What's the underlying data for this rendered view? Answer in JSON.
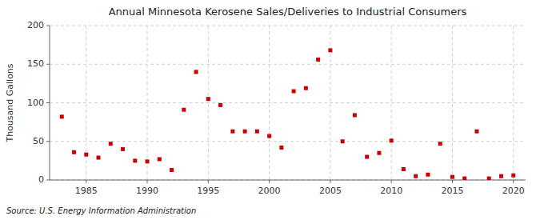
{
  "chart_data": {
    "type": "scatter",
    "title": "Annual Minnesota Kerosene Sales/Deliveries to Industrial Consumers",
    "ylabel": "Thousand Gallons",
    "annotation": "Source: U.S. Energy Information Administration",
    "x": [
      1983,
      1984,
      1985,
      1986,
      1987,
      1988,
      1989,
      1990,
      1991,
      1992,
      1993,
      1994,
      1995,
      1996,
      1997,
      1998,
      1999,
      2000,
      2001,
      2002,
      2003,
      2004,
      2005,
      2006,
      2007,
      2008,
      2009,
      2010,
      2011,
      2012,
      2013,
      2014,
      2015,
      2016,
      2017,
      2018,
      2019,
      2020
    ],
    "values": [
      82,
      36,
      33,
      29,
      47,
      40,
      25,
      24,
      27,
      13,
      91,
      140,
      105,
      97,
      63,
      63,
      63,
      57,
      42,
      115,
      119,
      156,
      168,
      50,
      84,
      30,
      35,
      51,
      14,
      5,
      7,
      47,
      4,
      2,
      63,
      2,
      5,
      6
    ],
    "color": "#cc0000",
    "marker": "square",
    "xlim": [
      1982,
      2021
    ],
    "ylim": [
      0,
      200
    ],
    "xticks": [
      1985,
      1990,
      1995,
      2000,
      2005,
      2010,
      2015,
      2020
    ],
    "yticks": [
      0,
      50,
      100,
      150,
      200
    ],
    "grid": true
  }
}
